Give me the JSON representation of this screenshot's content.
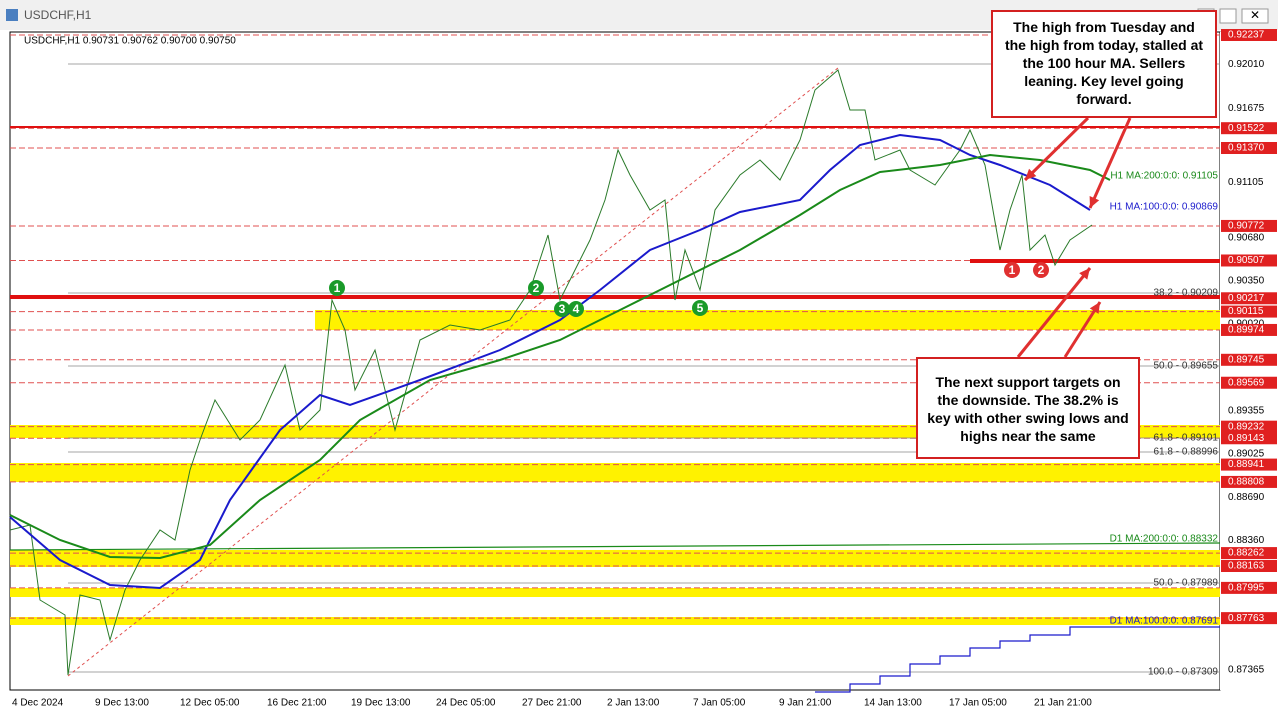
{
  "window": {
    "title": "USDCHF,H1"
  },
  "chart_header": "USDCHF,H1  0.90731 0.90762 0.90700 0.90750",
  "price_labels": [
    {
      "text": "0.92237",
      "highlight": true
    },
    {
      "text": "0.92010",
      "highlight": false
    },
    {
      "text": "0.91675",
      "highlight": false
    },
    {
      "text": "0.91522",
      "highlight": true
    },
    {
      "text": "0.91370",
      "highlight": true
    },
    {
      "text": "0.91105",
      "highlight": false
    },
    {
      "text": "0.90772",
      "highlight": true
    },
    {
      "text": "0.90680",
      "highlight": false
    },
    {
      "text": "0.90507",
      "highlight": true
    },
    {
      "text": "0.90350",
      "highlight": false
    },
    {
      "text": "0.90217",
      "highlight": true
    },
    {
      "text": "0.90115",
      "highlight": true
    },
    {
      "text": "0.90020",
      "highlight": false
    },
    {
      "text": "0.89974",
      "highlight": true
    },
    {
      "text": "0.89745",
      "highlight": true
    },
    {
      "text": "0.89569",
      "highlight": true
    },
    {
      "text": "0.89355",
      "highlight": false
    },
    {
      "text": "0.89232",
      "highlight": true
    },
    {
      "text": "0.89143",
      "highlight": true
    },
    {
      "text": "0.89025",
      "highlight": false
    },
    {
      "text": "0.88941",
      "highlight": true
    },
    {
      "text": "0.88808",
      "highlight": true
    },
    {
      "text": "0.88690",
      "highlight": false
    },
    {
      "text": "0.88360",
      "highlight": false
    },
    {
      "text": "0.88262",
      "highlight": true
    },
    {
      "text": "0.88163",
      "highlight": true
    },
    {
      "text": "0.87995",
      "highlight": true
    },
    {
      "text": "0.87763",
      "highlight": true
    },
    {
      "text": "0.87365",
      "highlight": false
    }
  ],
  "time_labels": [
    "4 Dec 2024",
    "9 Dec 13:00",
    "12 Dec 05:00",
    "16 Dec 21:00",
    "19 Dec 13:00",
    "24 Dec 05:00",
    "27 Dec 21:00",
    "2 Jan 13:00",
    "7 Jan 05:00",
    "9 Jan 21:00",
    "14 Jan 13:00",
    "17 Jan 05:00",
    "21 Jan 21:00"
  ],
  "indicator_labels": [
    "H1 MA:200:0:0: 0.91105",
    "H1 MA:100:0:0: 0.90869",
    "D1 MA:200:0:0: 0.88332",
    "D1 MA:100:0:0: 0.87691"
  ],
  "fib_labels": [
    "38.2 - 0.90209",
    "50.0 - 0.89655",
    "61.8 - 0.89101",
    "61.8 - 0.88996",
    "50.0 - 0.87989",
    "100.0 - 0.87309"
  ],
  "markers": {
    "green": [
      "1",
      "2",
      "3",
      "4",
      "5"
    ],
    "red": [
      "1",
      "2"
    ]
  },
  "annotations": [
    "The high from Tuesday and the high from today, stalled at the 100 hour MA.  Sellers leaning. Key level going forward.",
    "The next support targets on the downside. The 38.2% is key with other swing lows and highs near the same"
  ]
}
